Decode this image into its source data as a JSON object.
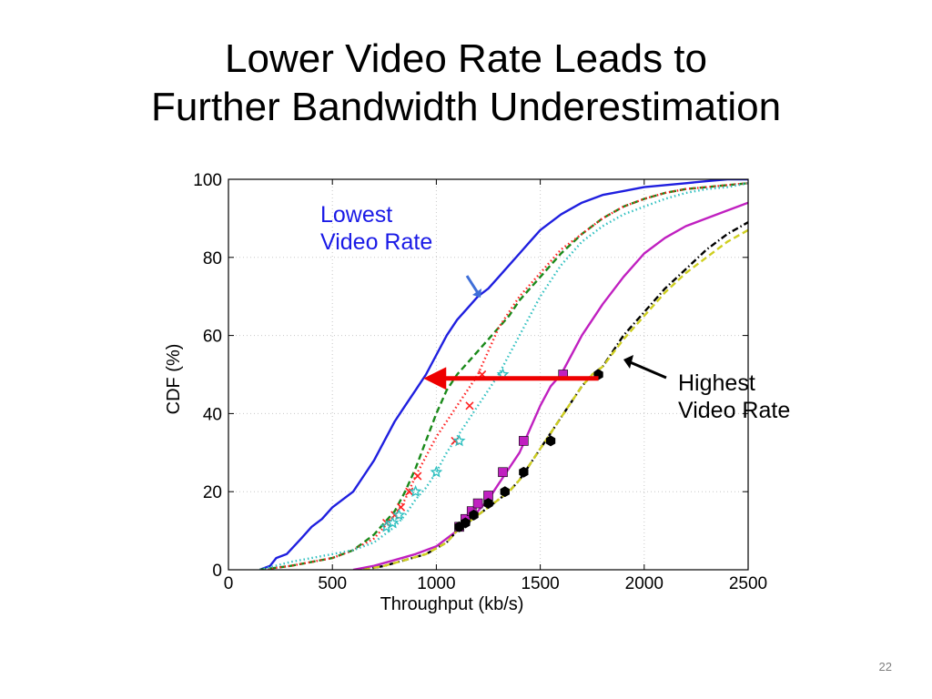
{
  "slide": {
    "title_line1": "Lower Video Rate Leads to",
    "title_line2": "Further Bandwidth Underestimation",
    "page_number": "22"
  },
  "annotations": {
    "lowest": [
      "Lowest",
      "Video Rate"
    ],
    "highest": [
      "Highest",
      "Video Rate"
    ]
  },
  "chart_data": {
    "type": "line",
    "xlabel": "Throughput (kb/s)",
    "ylabel": "CDF (%)",
    "xlim": [
      0,
      2500
    ],
    "ylim": [
      0,
      100
    ],
    "xticks": [
      0,
      500,
      1000,
      1500,
      2000,
      2500
    ],
    "yticks": [
      0,
      20,
      40,
      60,
      80,
      100
    ],
    "grid": true,
    "series": [
      {
        "color": "#1f1fdf",
        "style": "solid",
        "marker": "none",
        "x": [
          150,
          200,
          230,
          280,
          350,
          400,
          450,
          500,
          550,
          600,
          650,
          700,
          750,
          800,
          850,
          900,
          950,
          1000,
          1050,
          1100,
          1150,
          1200,
          1250,
          1300,
          1350,
          1400,
          1450,
          1500,
          1550,
          1600,
          1700,
          1800,
          1900,
          2000,
          2100,
          2200,
          2300,
          2400,
          2500
        ],
        "y": [
          0,
          1,
          3,
          4,
          8,
          11,
          13,
          16,
          18,
          20,
          24,
          28,
          33,
          38,
          42,
          46,
          50,
          55,
          60,
          64,
          67,
          70,
          72,
          75,
          78,
          81,
          84,
          87,
          89,
          91,
          94,
          96,
          97,
          98,
          98.5,
          99,
          99.5,
          100,
          100
        ]
      },
      {
        "color": "#1a8a1a",
        "style": "dashed",
        "marker": "none",
        "x": [
          150,
          300,
          400,
          500,
          600,
          650,
          700,
          750,
          800,
          850,
          900,
          950,
          1000,
          1050,
          1100,
          1150,
          1200,
          1250,
          1300,
          1350,
          1400,
          1450,
          1500,
          1550,
          1600,
          1700,
          1800,
          1900,
          2000,
          2100,
          2200,
          2300,
          2400,
          2500
        ],
        "y": [
          0,
          1,
          2,
          3,
          5,
          7,
          9,
          12,
          15,
          20,
          26,
          33,
          40,
          46,
          50,
          53,
          56,
          59,
          62,
          65,
          69,
          72,
          75,
          78,
          81,
          86,
          90,
          93,
          95,
          96.5,
          97.5,
          98,
          98.5,
          99
        ]
      },
      {
        "color": "#ff2020",
        "style": "dotted",
        "marker": "x",
        "x": [
          150,
          300,
          400,
          500,
          600,
          700,
          750,
          800,
          850,
          900,
          950,
          1000,
          1050,
          1100,
          1150,
          1200,
          1250,
          1300,
          1350,
          1400,
          1450,
          1500,
          1550,
          1600,
          1700,
          1800,
          1900,
          2000,
          2100,
          2200,
          2300,
          2400,
          2500
        ],
        "y": [
          0,
          1,
          2,
          3,
          5,
          8,
          11,
          14,
          18,
          24,
          29,
          34,
          38,
          42,
          46,
          50,
          56,
          62,
          66,
          70,
          73,
          76,
          79,
          82,
          86,
          90,
          93,
          95,
          96.5,
          97.5,
          98,
          98.5,
          99
        ],
        "marker_x": [
          760,
          800,
          830,
          870,
          910,
          1090,
          1160,
          1220
        ],
        "marker_y": [
          12,
          14,
          16,
          20,
          24,
          33,
          42,
          50
        ]
      },
      {
        "color": "#30c0c0",
        "style": "dotted",
        "marker": "star",
        "x": [
          150,
          300,
          400,
          500,
          600,
          700,
          750,
          800,
          850,
          900,
          950,
          1000,
          1050,
          1100,
          1150,
          1200,
          1250,
          1300,
          1350,
          1400,
          1450,
          1500,
          1550,
          1600,
          1700,
          1800,
          1900,
          2000,
          2100,
          2200,
          2300,
          2400,
          2500
        ],
        "y": [
          0,
          2,
          3,
          4,
          5,
          7,
          9,
          11,
          14,
          18,
          21,
          25,
          30,
          34,
          38,
          42,
          46,
          50,
          55,
          60,
          65,
          70,
          74,
          78,
          84,
          88,
          91,
          93,
          95,
          96.5,
          97.5,
          98,
          99
        ],
        "marker_x": [
          760,
          790,
          820,
          900,
          1000,
          1110,
          1320
        ],
        "marker_y": [
          11,
          12,
          14,
          20,
          25,
          33,
          50
        ]
      },
      {
        "color": "#c020c0",
        "style": "solid",
        "marker": "square",
        "x": [
          600,
          700,
          800,
          900,
          1000,
          1100,
          1150,
          1200,
          1250,
          1300,
          1350,
          1400,
          1450,
          1500,
          1550,
          1600,
          1650,
          1700,
          1750,
          1800,
          1900,
          2000,
          2100,
          2200,
          2300,
          2400,
          2500
        ],
        "y": [
          0,
          1,
          2.5,
          4,
          6,
          10,
          12,
          15,
          18,
          22,
          26,
          30,
          36,
          42,
          47,
          50,
          55,
          60,
          64,
          68,
          75,
          81,
          85,
          88,
          90,
          92,
          94
        ],
        "marker_x": [
          1110,
          1140,
          1170,
          1200,
          1250,
          1320,
          1420,
          1610
        ],
        "marker_y": [
          11,
          13,
          15,
          17,
          19,
          25,
          33,
          50
        ]
      },
      {
        "color": "#000000",
        "style": "dashdot",
        "marker": "hexagon",
        "x": [
          650,
          750,
          850,
          950,
          1050,
          1100,
          1150,
          1200,
          1250,
          1300,
          1350,
          1400,
          1450,
          1500,
          1550,
          1600,
          1650,
          1700,
          1750,
          1800,
          1900,
          2000,
          2100,
          2200,
          2300,
          2400,
          2500
        ],
        "y": [
          0,
          1,
          2.5,
          4,
          7,
          10,
          12,
          14,
          16,
          18,
          20,
          23,
          27,
          31,
          35,
          39,
          43,
          47,
          50,
          52,
          60,
          66,
          72,
          77,
          82,
          86,
          89
        ],
        "marker_x": [
          1110,
          1140,
          1180,
          1250,
          1330,
          1420,
          1550,
          1780
        ],
        "marker_y": [
          11,
          12,
          14,
          17,
          20,
          25,
          33,
          50
        ]
      },
      {
        "color": "#cfcf20",
        "style": "dashed",
        "marker": "none",
        "x": [
          650,
          750,
          850,
          950,
          1050,
          1100,
          1150,
          1200,
          1250,
          1300,
          1350,
          1400,
          1450,
          1500,
          1550,
          1600,
          1650,
          1700,
          1750,
          1800,
          1900,
          2000,
          2100,
          2200,
          2300,
          2400,
          2500
        ],
        "y": [
          0,
          1,
          2.5,
          4,
          7,
          10,
          12,
          14,
          16,
          18,
          20,
          23,
          27,
          31,
          35,
          39,
          43,
          47,
          50,
          52,
          59,
          65,
          71,
          76,
          80,
          84,
          87
        ]
      }
    ],
    "arrows": [
      {
        "name": "red-horizontal-arrow",
        "color": "#ee0000",
        "from": [
          1780,
          49
        ],
        "to": [
          960,
          49
        ]
      }
    ]
  }
}
